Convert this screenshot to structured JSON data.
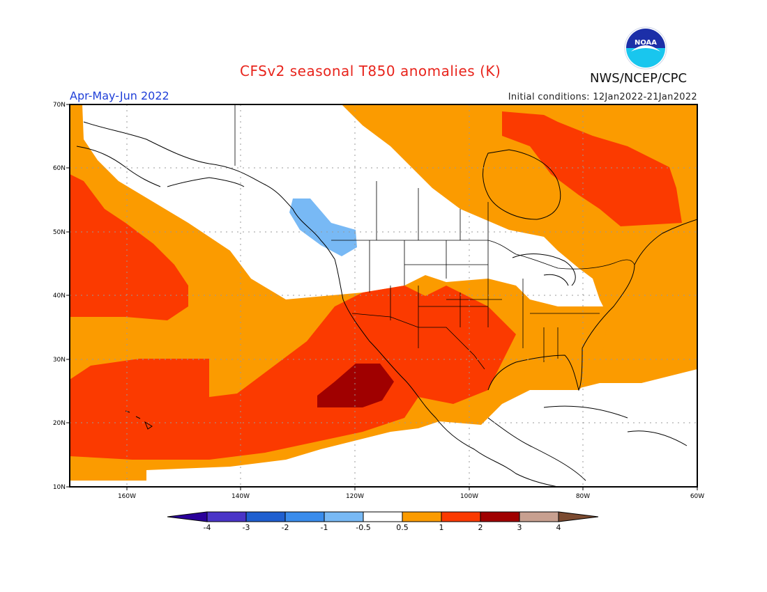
{
  "header": {
    "title": "CFSv2 seasonal T850 anomalies (K)",
    "agency": "NWS/NCEP/CPC",
    "season": "Apr-May-Jun 2022",
    "initial_conditions": "Initial conditions: 12Jan2022-21Jan2022",
    "logo_text": "NOAA"
  },
  "map": {
    "lat_labels": [
      "70N",
      "60N",
      "50N",
      "40N",
      "30N",
      "20N",
      "10N"
    ],
    "lon_labels": [
      "160W",
      "140W",
      "120W",
      "100W",
      "80W",
      "60W"
    ],
    "extent": {
      "lon_min": -170,
      "lon_max": -60,
      "lat_min": 10,
      "lat_max": 70
    },
    "grid": true
  },
  "colorbar": {
    "labels": [
      "-4",
      "-3",
      "-2",
      "-1",
      "-0.5",
      "0.5",
      "1",
      "2",
      "3",
      "4"
    ],
    "colors": [
      "#2a009a",
      "#4a35c8",
      "#1f5fd0",
      "#3a8cec",
      "#78b9f5",
      "#ffffff",
      "#fb9b00",
      "#fb3a00",
      "#a00000",
      "#c8a090",
      "#7b4a30"
    ]
  },
  "colors": {
    "orange": "#fb9b00",
    "red": "#fb3a00",
    "dark_red": "#a00000",
    "light_blue": "#78b9f5"
  }
}
